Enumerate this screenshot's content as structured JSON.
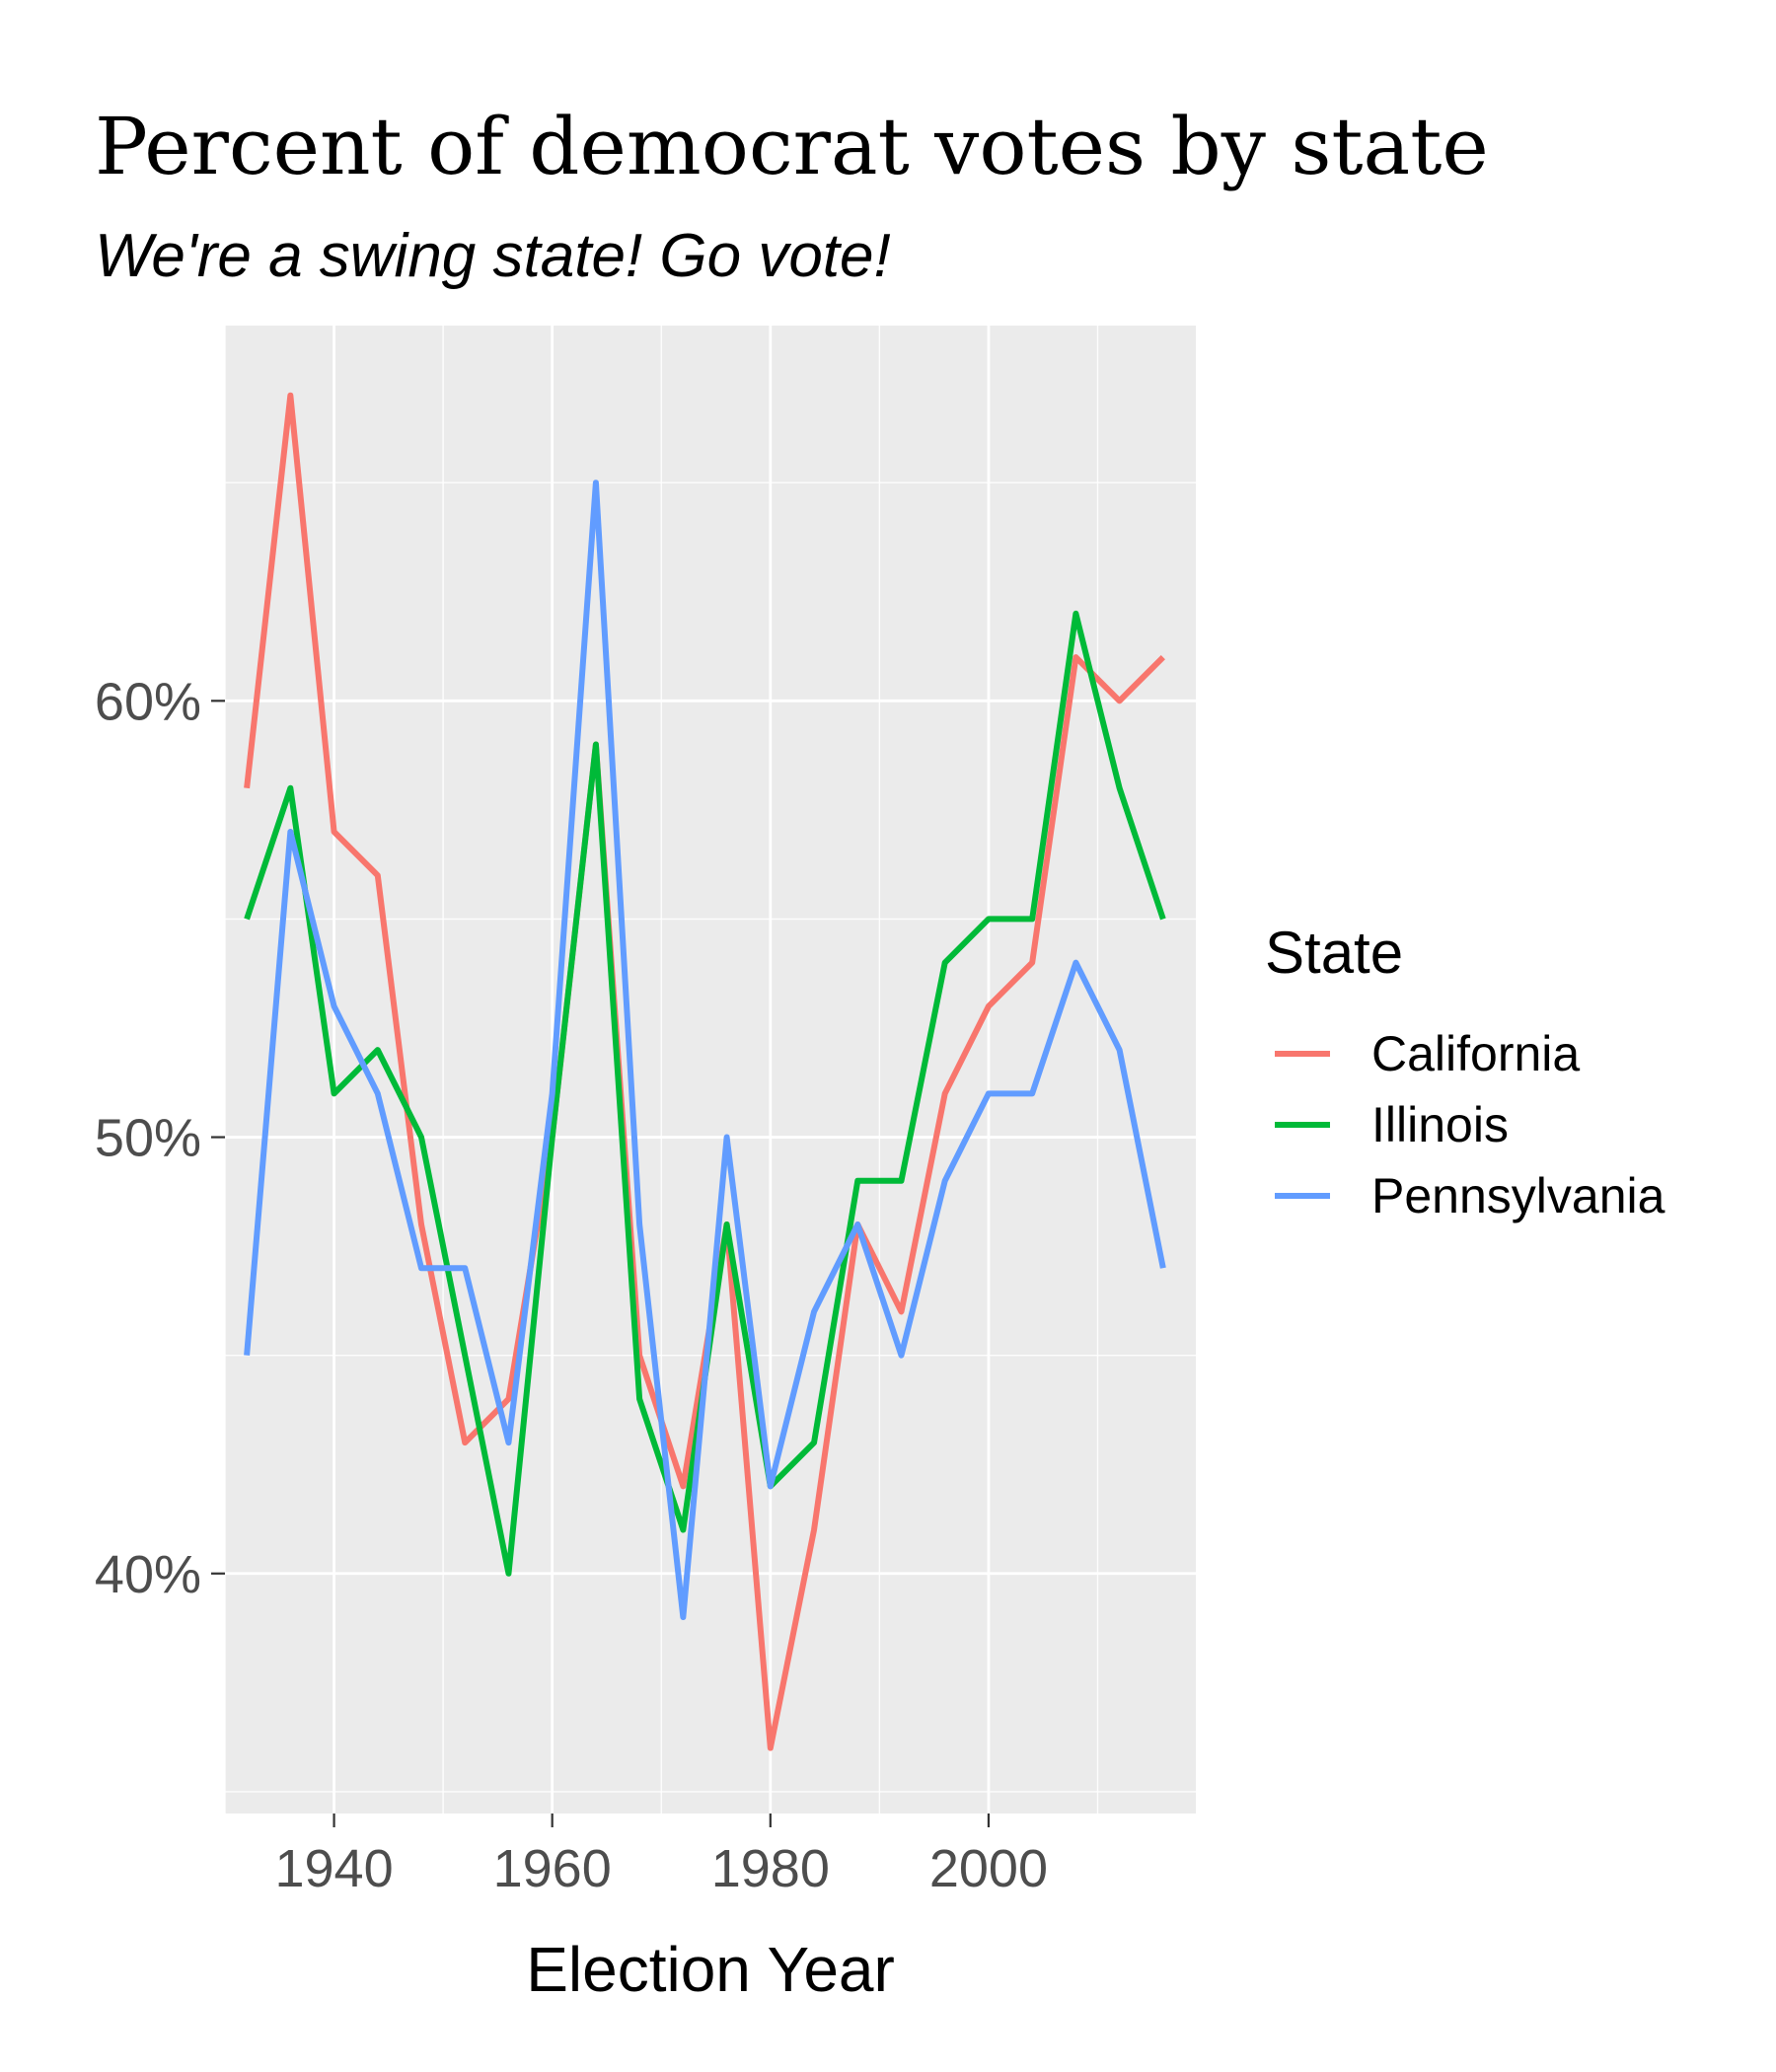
{
  "chart_data": {
    "type": "line",
    "title": "Percent of democrat votes by state",
    "subtitle": "We're a swing state! Go vote!",
    "xlabel": "Election Year",
    "ylabel": "",
    "x": [
      1932,
      1936,
      1940,
      1944,
      1948,
      1952,
      1956,
      1960,
      1964,
      1968,
      1972,
      1976,
      1980,
      1984,
      1988,
      1992,
      1996,
      2000,
      2004,
      2008,
      2012,
      2016
    ],
    "xlim": [
      1930,
      2019
    ],
    "ylim": [
      34.5,
      68.6
    ],
    "x_ticks": [
      1940,
      1960,
      1980,
      2000
    ],
    "x_tick_labels": [
      "1940",
      "1960",
      "1980",
      "2000"
    ],
    "x_minor_ticks": [
      1930,
      1950,
      1970,
      1990,
      2010
    ],
    "y_ticks": [
      40,
      50,
      60
    ],
    "y_tick_labels": [
      "40%",
      "50%",
      "60%"
    ],
    "y_minor_ticks": [
      35,
      45,
      55,
      65
    ],
    "grid": true,
    "legend": {
      "title": "State",
      "position": "right"
    },
    "series": [
      {
        "name": "California",
        "color": "#F8766D",
        "values": [
          58,
          67,
          57,
          56,
          48,
          43,
          44,
          50,
          59,
          45,
          42,
          48,
          36,
          41,
          48,
          46,
          51,
          53,
          54,
          61,
          60,
          61
        ]
      },
      {
        "name": "Illinois",
        "color": "#00BA38",
        "values": [
          55,
          58,
          51,
          52,
          50,
          45,
          40,
          50,
          59,
          44,
          41,
          48,
          42,
          43,
          49,
          49,
          54,
          55,
          55,
          62,
          58,
          55
        ]
      },
      {
        "name": "Pennsylvania",
        "color": "#619CFF",
        "values": [
          45,
          57,
          53,
          51,
          47,
          47,
          43,
          51,
          65,
          48,
          39,
          50,
          42,
          46,
          48,
          45,
          49,
          51,
          51,
          54,
          52,
          47
        ]
      }
    ]
  },
  "colors": {
    "panel_background": "#EBEBEB",
    "grid_major": "#FFFFFF",
    "tick_color": "#333333"
  }
}
